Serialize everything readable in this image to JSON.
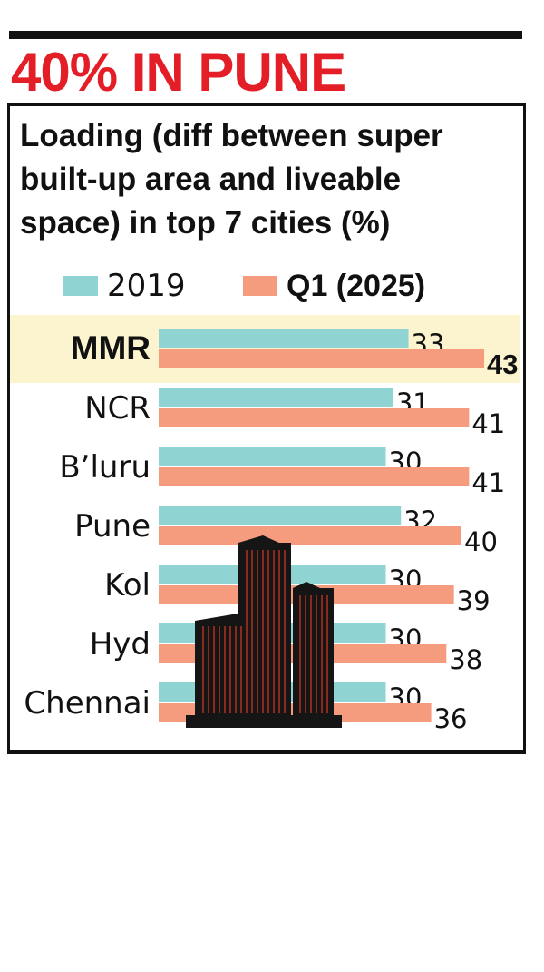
{
  "headline": "40% IN PUNE",
  "subtitle": "Loading (diff between super built-up area and liveable space) in top 7 cities (%)",
  "colors": {
    "series_2019": "#8fd3d3",
    "series_2025": "#f59b7e",
    "highlight": "#fbf4cf",
    "headline": "#e41e26"
  },
  "chart_data": {
    "type": "bar",
    "orientation": "horizontal",
    "title": "Loading (diff between super built-up area and liveable space) in top 7 cities (%)",
    "categories": [
      "MMR",
      "NCR",
      "B’luru",
      "Pune",
      "Kol",
      "Hyd",
      "Chennai"
    ],
    "highlighted_category": "MMR",
    "series": [
      {
        "name": "2019",
        "values": [
          33,
          31,
          30,
          32,
          30,
          30,
          30
        ]
      },
      {
        "name": "Q1 (2025)",
        "values": [
          43,
          41,
          41,
          40,
          39,
          38,
          36
        ]
      }
    ],
    "legend": "top",
    "grid": false
  }
}
